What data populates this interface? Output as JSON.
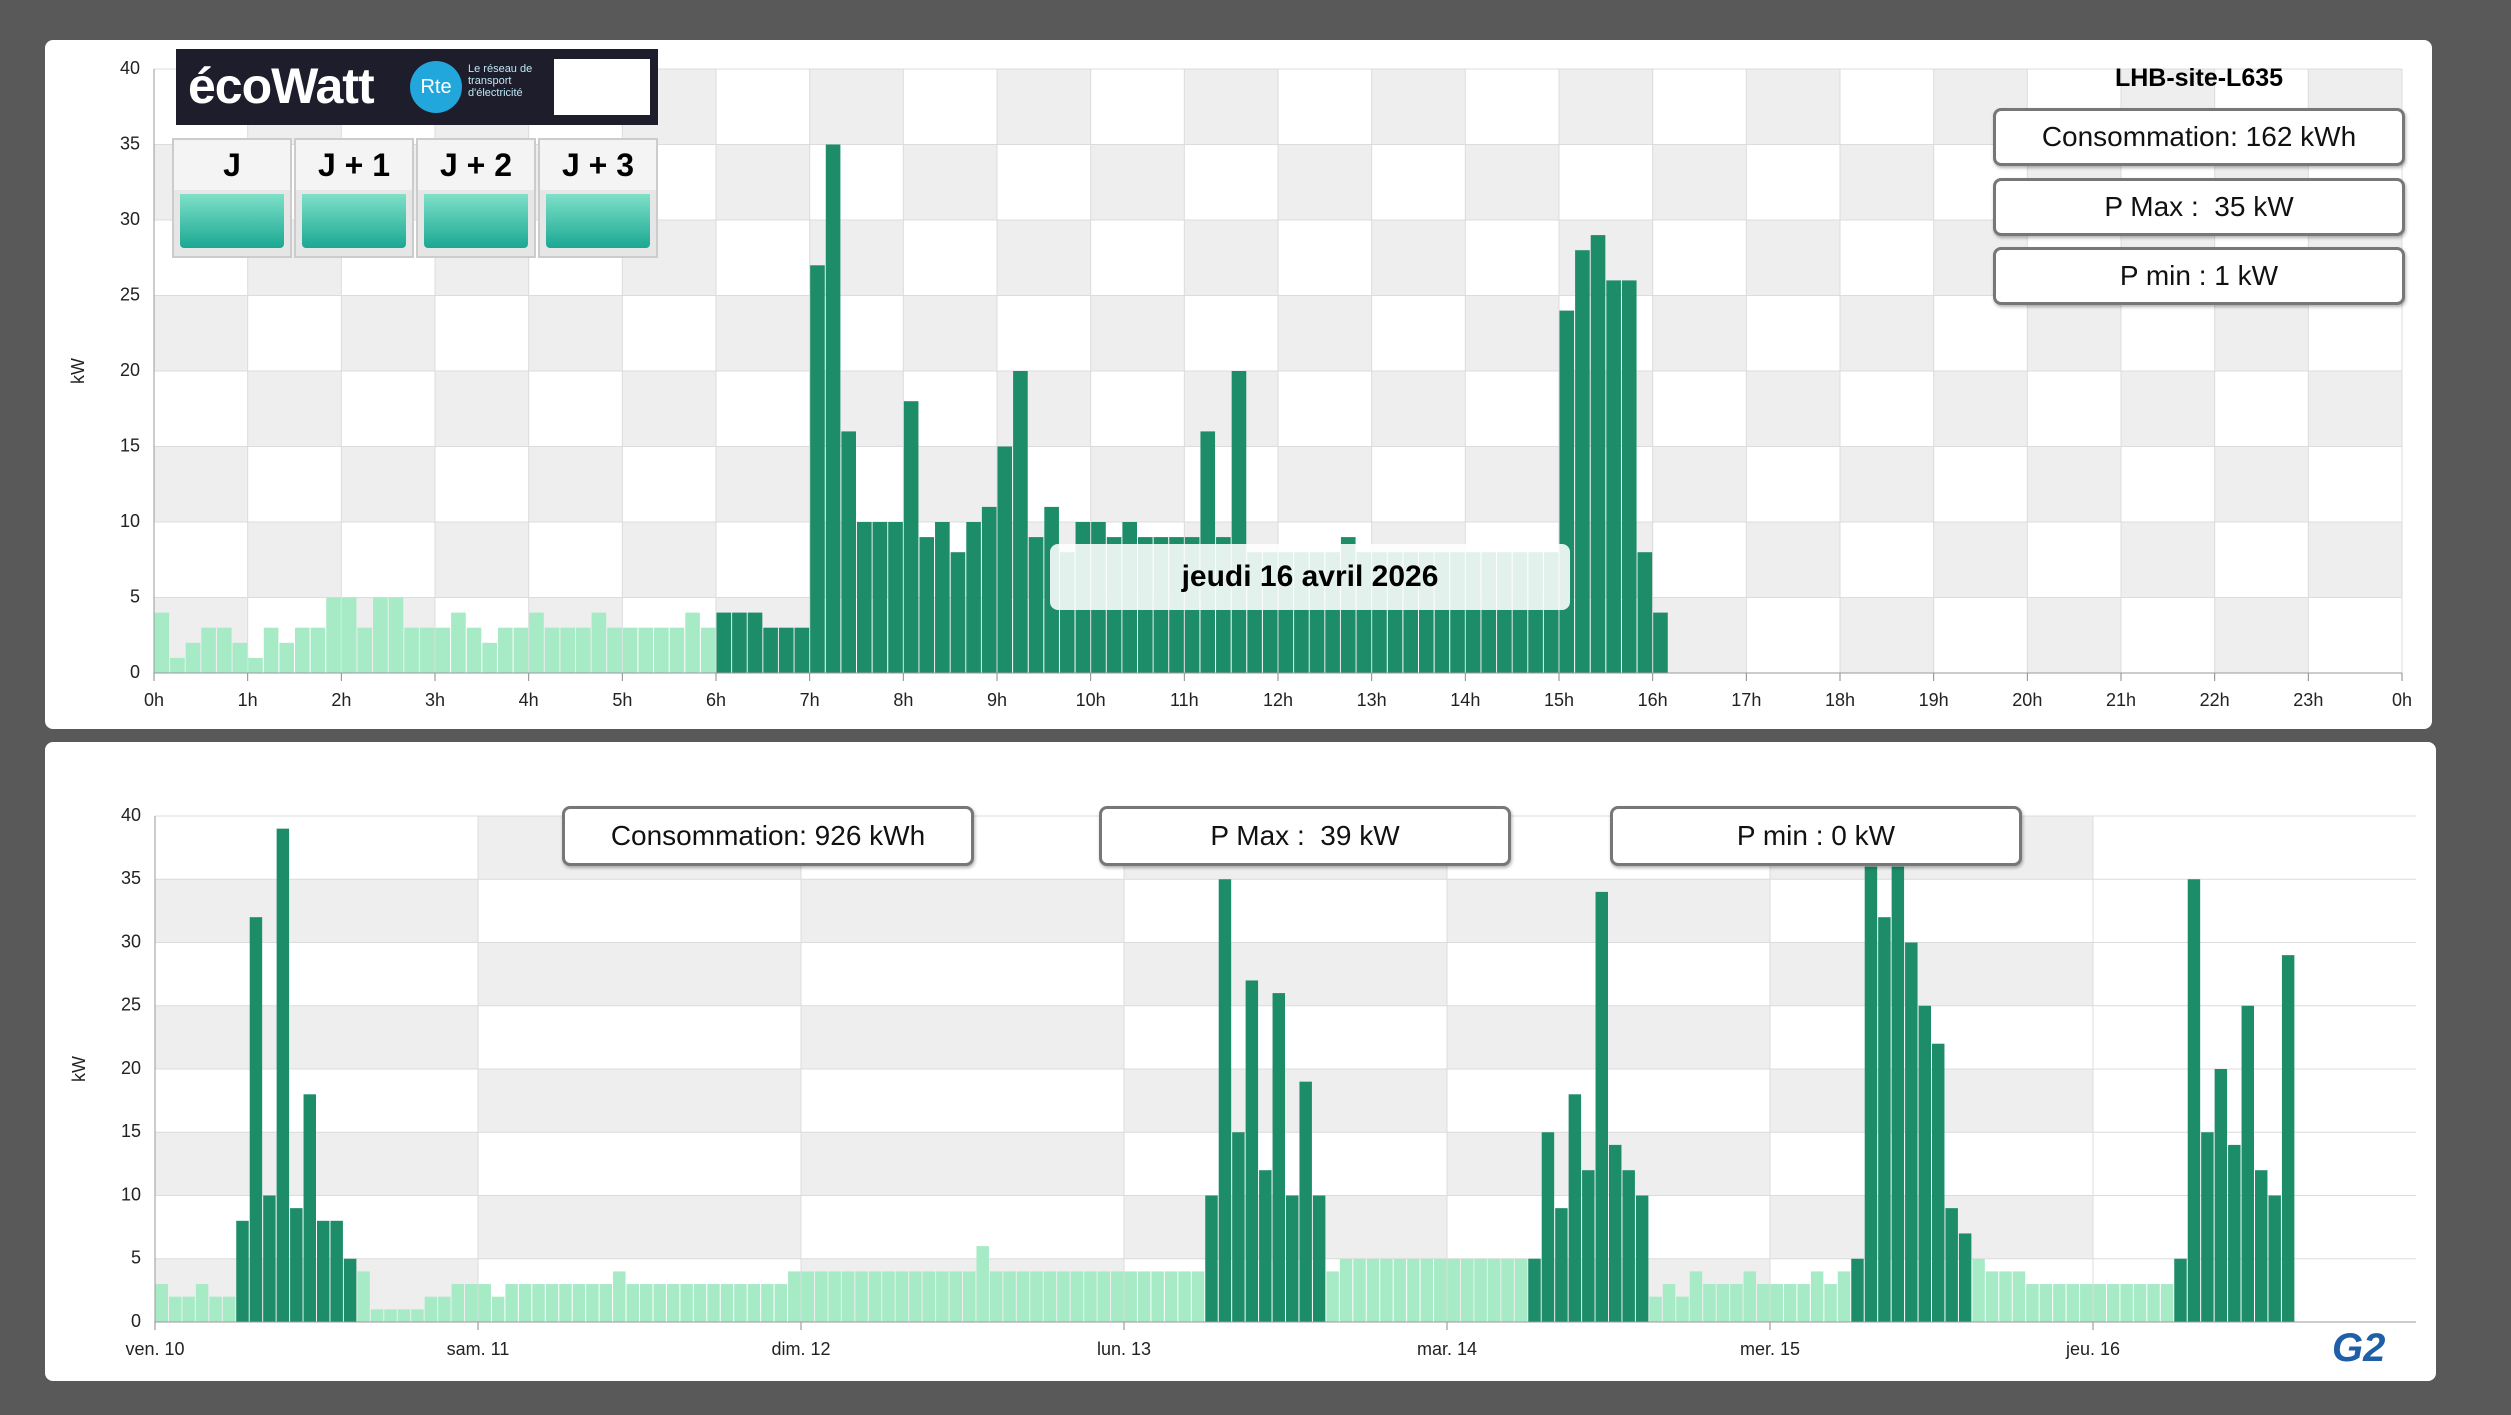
{
  "ecowatt": {
    "logo": "écoWatt",
    "rte": "Rte",
    "rte_text": "Le réseau de transport d'électricité",
    "days": [
      "J",
      "J + 1",
      "J + 2",
      "J + 3"
    ]
  },
  "footer_logo": "G2",
  "chart_data": [
    {
      "type": "bar",
      "title": "LHB-site-L635",
      "ylabel": "kW",
      "annotation": "jeudi 16 avril 2026",
      "stats": [
        "Consommation: 162 kWh",
        "P Max :  35 kW",
        "P min : 1 kW"
      ],
      "xlim": [
        0,
        1440
      ],
      "xticks": [
        {
          "value": 0,
          "label": "0h"
        },
        {
          "value": 60,
          "label": "1h"
        },
        {
          "value": 120,
          "label": "2h"
        },
        {
          "value": 180,
          "label": "3h"
        },
        {
          "value": 240,
          "label": "4h"
        },
        {
          "value": 300,
          "label": "5h"
        },
        {
          "value": 360,
          "label": "6h"
        },
        {
          "value": 420,
          "label": "7h"
        },
        {
          "value": 480,
          "label": "8h"
        },
        {
          "value": 540,
          "label": "9h"
        },
        {
          "value": 600,
          "label": "10h"
        },
        {
          "value": 660,
          "label": "11h"
        },
        {
          "value": 720,
          "label": "12h"
        },
        {
          "value": 780,
          "label": "13h"
        },
        {
          "value": 840,
          "label": "14h"
        },
        {
          "value": 900,
          "label": "15h"
        },
        {
          "value": 960,
          "label": "16h"
        },
        {
          "value": 1020,
          "label": "17h"
        },
        {
          "value": 1080,
          "label": "18h"
        },
        {
          "value": 1140,
          "label": "19h"
        },
        {
          "value": 1200,
          "label": "20h"
        },
        {
          "value": 1260,
          "label": "21h"
        },
        {
          "value": 1320,
          "label": "22h"
        },
        {
          "value": 1380,
          "label": "23h"
        },
        {
          "value": 1440,
          "label": "0h"
        }
      ],
      "ylim": [
        0,
        40
      ],
      "yticks": [
        0,
        5,
        10,
        15,
        20,
        25,
        30,
        35,
        40
      ],
      "grid": true,
      "series": [
        {
          "color": "#a6ebc6",
          "x": [
            0,
            10,
            20,
            30,
            40,
            50,
            60,
            70,
            80,
            90,
            100,
            110,
            120,
            130,
            140,
            150,
            160,
            170,
            180,
            190,
            200,
            210,
            220,
            230,
            240,
            250,
            260,
            270,
            280,
            290,
            300,
            310,
            320,
            330,
            340,
            350
          ],
          "values": [
            4,
            1,
            2,
            3,
            3,
            2,
            1,
            3,
            2,
            3,
            3,
            5,
            5,
            3,
            5,
            5,
            3,
            3,
            3,
            4,
            3,
            2,
            3,
            3,
            4,
            3,
            3,
            3,
            4,
            3,
            3,
            3,
            3,
            3,
            4,
            3
          ]
        },
        {
          "color": "#1d8c69",
          "x": [
            360,
            370,
            380,
            390,
            400,
            410,
            420,
            430,
            440,
            450,
            460,
            470,
            480,
            490,
            500,
            510,
            520,
            530,
            540,
            550,
            560,
            570,
            580,
            590,
            600,
            610,
            620,
            630,
            640,
            650,
            660,
            670,
            680,
            690,
            700,
            710,
            720,
            730,
            740,
            750,
            760,
            770,
            780,
            790,
            800,
            810,
            820,
            830,
            840,
            850,
            860,
            870,
            880,
            890,
            900,
            910,
            920,
            930,
            940,
            950,
            960
          ],
          "values": [
            4,
            4,
            4,
            3,
            3,
            3,
            27,
            35,
            16,
            10,
            10,
            10,
            18,
            9,
            10,
            8,
            10,
            11,
            15,
            20,
            9,
            11,
            8,
            10,
            10,
            9,
            10,
            9,
            9,
            9,
            9,
            16,
            9,
            20,
            8,
            8,
            8,
            8,
            8,
            8,
            9,
            8,
            8,
            8,
            8,
            8,
            8,
            8,
            8,
            8,
            8,
            8,
            8,
            8,
            24,
            28,
            29,
            26,
            26,
            8,
            4
          ]
        }
      ]
    },
    {
      "type": "bar",
      "ylabel": "kW",
      "stats": [
        "Consommation: 926 kWh",
        "P Max :  39 kW",
        "P min : 0 kW"
      ],
      "xlim": [
        0,
        168
      ],
      "xticks": [
        {
          "value": 0,
          "label": "ven. 10"
        },
        {
          "value": 24,
          "label": "sam. 11"
        },
        {
          "value": 48,
          "label": "dim. 12"
        },
        {
          "value": 72,
          "label": "lun. 13"
        },
        {
          "value": 96,
          "label": "mar. 14"
        },
        {
          "value": 120,
          "label": "mer. 15"
        },
        {
          "value": 144,
          "label": "jeu. 16"
        }
      ],
      "ylim": [
        0,
        40
      ],
      "yticks": [
        0,
        5,
        10,
        15,
        20,
        25,
        30,
        35,
        40
      ],
      "grid": true,
      "series": [
        {
          "color": "#a6ebc6",
          "x": [
            0,
            1,
            2,
            3,
            4,
            5,
            15,
            16,
            17,
            18,
            19,
            20,
            21,
            22,
            23,
            24,
            25,
            26,
            27,
            28,
            29,
            30,
            31,
            32,
            33,
            34,
            35,
            36,
            37,
            38,
            39,
            40,
            41,
            42,
            43,
            44,
            45,
            46,
            47,
            48,
            49,
            50,
            51,
            52,
            53,
            54,
            55,
            56,
            57,
            58,
            59,
            60,
            61,
            62,
            63,
            64,
            65,
            66,
            67,
            68,
            69,
            70,
            71,
            72,
            73,
            74,
            75,
            76,
            77,
            87,
            88,
            89,
            90,
            91,
            92,
            93,
            94,
            95,
            96,
            97,
            98,
            99,
            100,
            101,
            111,
            112,
            113,
            114,
            115,
            116,
            117,
            118,
            119,
            120,
            121,
            122,
            123,
            124,
            125,
            135,
            136,
            137,
            138,
            139,
            140,
            141,
            142,
            143,
            144,
            145,
            146,
            147,
            148,
            149
          ],
          "values": [
            3,
            2,
            2,
            3,
            2,
            2,
            4,
            1,
            1,
            1,
            1,
            2,
            2,
            3,
            3,
            3,
            2,
            3,
            3,
            3,
            3,
            3,
            3,
            3,
            3,
            4,
            3,
            3,
            3,
            3,
            3,
            3,
            3,
            3,
            3,
            3,
            3,
            3,
            4,
            4,
            4,
            4,
            4,
            4,
            4,
            4,
            4,
            4,
            4,
            4,
            4,
            4,
            6,
            4,
            4,
            4,
            4,
            4,
            4,
            4,
            4,
            4,
            4,
            4,
            4,
            4,
            4,
            4,
            4,
            4,
            5,
            5,
            5,
            5,
            5,
            5,
            5,
            5,
            5,
            5,
            5,
            5,
            5,
            5,
            2,
            3,
            2,
            4,
            3,
            3,
            3,
            4,
            3,
            3,
            3,
            3,
            4,
            3,
            4,
            5,
            4,
            4,
            4,
            3,
            3,
            3,
            3,
            3,
            3,
            3,
            3,
            3,
            3,
            3
          ]
        },
        {
          "color": "#1d8c69",
          "x": [
            6,
            7,
            8,
            9,
            10,
            11,
            12,
            13,
            14,
            78,
            79,
            80,
            81,
            82,
            83,
            84,
            85,
            86,
            102,
            103,
            104,
            105,
            106,
            107,
            108,
            109,
            110,
            126,
            127,
            128,
            129,
            130,
            131,
            132,
            133,
            134,
            150,
            151,
            152,
            153,
            154,
            155,
            156,
            157,
            158
          ],
          "values": [
            8,
            32,
            10,
            39,
            9,
            18,
            8,
            8,
            5,
            10,
            35,
            15,
            27,
            12,
            26,
            10,
            19,
            10,
            5,
            15,
            9,
            18,
            12,
            34,
            14,
            12,
            10,
            5,
            36,
            32,
            36,
            30,
            25,
            22,
            9,
            7,
            5,
            35,
            15,
            20,
            14,
            25,
            12,
            10,
            29
          ]
        }
      ]
    }
  ]
}
